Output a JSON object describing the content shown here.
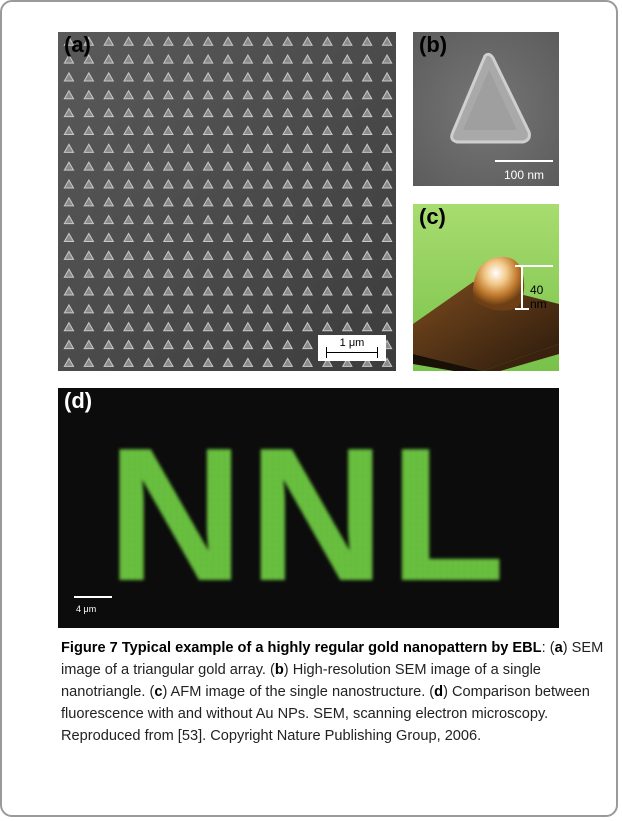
{
  "figure": {
    "panels": {
      "a": {
        "label": "(a)",
        "scale_text": "1 μm"
      },
      "b": {
        "label": "(b)",
        "scale_text": "100 nm"
      },
      "c": {
        "label": "(c)",
        "height_text": "40 nm"
      },
      "d": {
        "label": "(d)",
        "word": "NNL",
        "scale_text": "4 μm"
      }
    },
    "colors": {
      "fluorescence_green": "#6cc13f",
      "afm_green": "#8fd15a",
      "sem_gray": "#4a4a4a"
    }
  },
  "caption": {
    "title": "Figure 7 Typical example of a highly regular gold nanopattern by EBL",
    "seg1": ": (",
    "a": "a",
    "seg2": ") SEM image of a triangular gold array. (",
    "b": "b",
    "seg3": ") High-resolution SEM image of a single nanotriangle. (",
    "c": "c",
    "seg4": ") AFM image of the single nanostructure. (",
    "d": "d",
    "seg5": ") Comparison between fluorescence with and without Au NPs. SEM, scanning electron microscopy. Reproduced from [53]. Copyright Nature Publishing Group, 2006."
  }
}
